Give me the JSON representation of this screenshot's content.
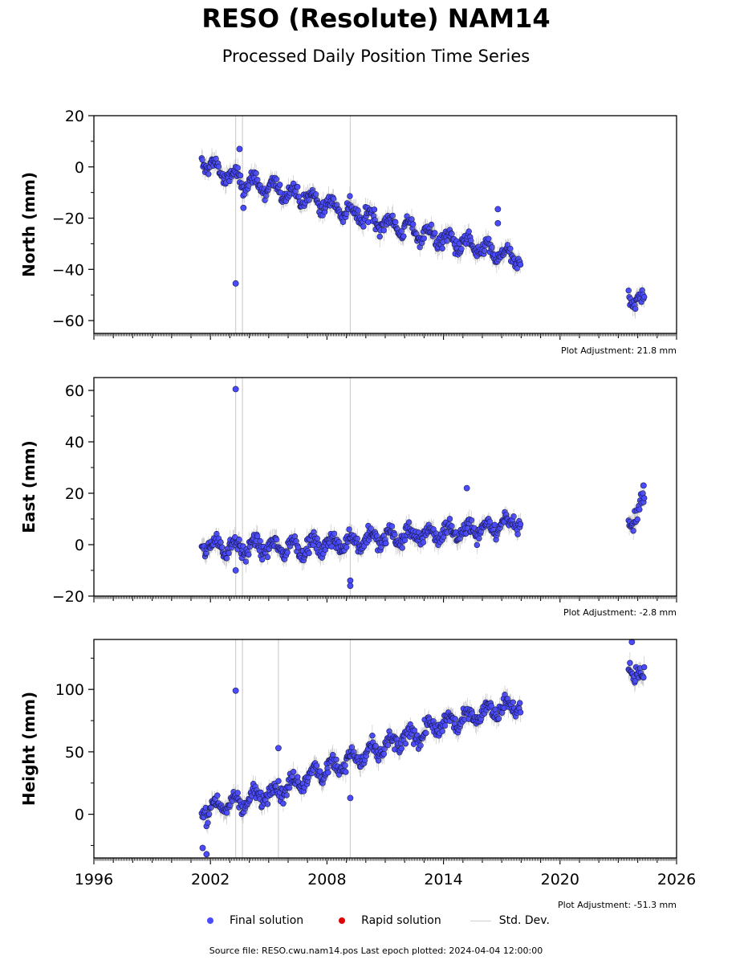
{
  "title": "RESO (Resolute) NAM14",
  "subtitle": "Processed Daily Position Time Series",
  "legend": {
    "final_label": "Final solution",
    "rapid_label": "Rapid solution",
    "std_label": "Std. Dev.",
    "final_color": "#4a4aff",
    "rapid_color": "#e00000",
    "std_color": "#cfcfcf"
  },
  "footer": "Source file: RESO.cwu.nam14.pos  Last epoch plotted: 2024-04-04 12:00:00",
  "chart_data": [
    {
      "type": "scatter",
      "ylabel": "North (mm)",
      "adjustment": "Plot Adjustment: 21.8 mm",
      "xlim": [
        1996,
        2026
      ],
      "ylim": [
        -65,
        20
      ],
      "yticks": [
        20,
        0,
        -20,
        -40,
        -60
      ],
      "ytick_labels": [
        "20",
        "0",
        "−20",
        "−40",
        "−60"
      ],
      "trend": [
        [
          2001.5,
          3
        ],
        [
          2003,
          -4
        ],
        [
          2006,
          -10
        ],
        [
          2009,
          -17
        ],
        [
          2012,
          -24
        ],
        [
          2015,
          -30
        ],
        [
          2017.8,
          -36
        ],
        [
          2023.6,
          -50
        ],
        [
          2024.3,
          -53
        ]
      ],
      "gaps": [
        [
          2018.0,
          2023.5
        ]
      ],
      "outliers": [
        [
          2003.3,
          -45.5
        ],
        [
          2003.5,
          7
        ],
        [
          2003.7,
          -16
        ],
        [
          2016.8,
          -16.5
        ],
        [
          2016.8,
          -22
        ]
      ],
      "vlines": [
        2003.3,
        2003.65,
        2009.2
      ]
    },
    {
      "type": "scatter",
      "ylabel": "East (mm)",
      "adjustment": "Plot Adjustment: -2.8 mm",
      "xlim": [
        1996,
        2026
      ],
      "ylim": [
        -20,
        65
      ],
      "yticks": [
        60,
        40,
        20,
        0,
        -20
      ],
      "ytick_labels": [
        "60",
        "40",
        "20",
        "0",
        "−20"
      ],
      "trend": [
        [
          2001.5,
          0
        ],
        [
          2004,
          -1
        ],
        [
          2007,
          -1
        ],
        [
          2010,
          2
        ],
        [
          2013,
          4
        ],
        [
          2015.5,
          6
        ],
        [
          2017.8,
          9
        ],
        [
          2023.6,
          9
        ],
        [
          2024.3,
          16
        ]
      ],
      "gaps": [
        [
          2018.0,
          2023.5
        ]
      ],
      "outliers": [
        [
          2003.3,
          60.5
        ],
        [
          2003.3,
          -10
        ],
        [
          2009.2,
          -14
        ],
        [
          2009.2,
          -16
        ],
        [
          2015.2,
          22
        ],
        [
          2024.3,
          23
        ]
      ],
      "vlines": [
        2003.3,
        2003.65,
        2009.2
      ]
    },
    {
      "type": "scatter",
      "ylabel": "Height (mm)",
      "adjustment": "Plot Adjustment: -51.3 mm",
      "xlim": [
        1996,
        2026
      ],
      "ylim": [
        -35,
        140
      ],
      "yticks": [
        100,
        50,
        0
      ],
      "ytick_labels": [
        "100",
        "50",
        "0"
      ],
      "xticks": [
        1996,
        2002,
        2008,
        2014,
        2020,
        2026
      ],
      "trend": [
        [
          2001.5,
          3
        ],
        [
          2004,
          12
        ],
        [
          2006,
          22
        ],
        [
          2008,
          37
        ],
        [
          2010,
          48
        ],
        [
          2012,
          60
        ],
        [
          2014,
          72
        ],
        [
          2016,
          82
        ],
        [
          2017.8,
          88
        ],
        [
          2023.6,
          120
        ],
        [
          2024.3,
          108
        ]
      ],
      "gaps": [
        [
          2018.0,
          2023.5
        ]
      ],
      "outliers": [
        [
          2003.3,
          99
        ],
        [
          2005.5,
          53
        ],
        [
          2009.2,
          13
        ],
        [
          2001.6,
          -27
        ],
        [
          2001.8,
          -32
        ],
        [
          2023.7,
          138
        ]
      ],
      "vlines": [
        2003.3,
        2003.65,
        2009.2,
        2005.5
      ]
    }
  ]
}
